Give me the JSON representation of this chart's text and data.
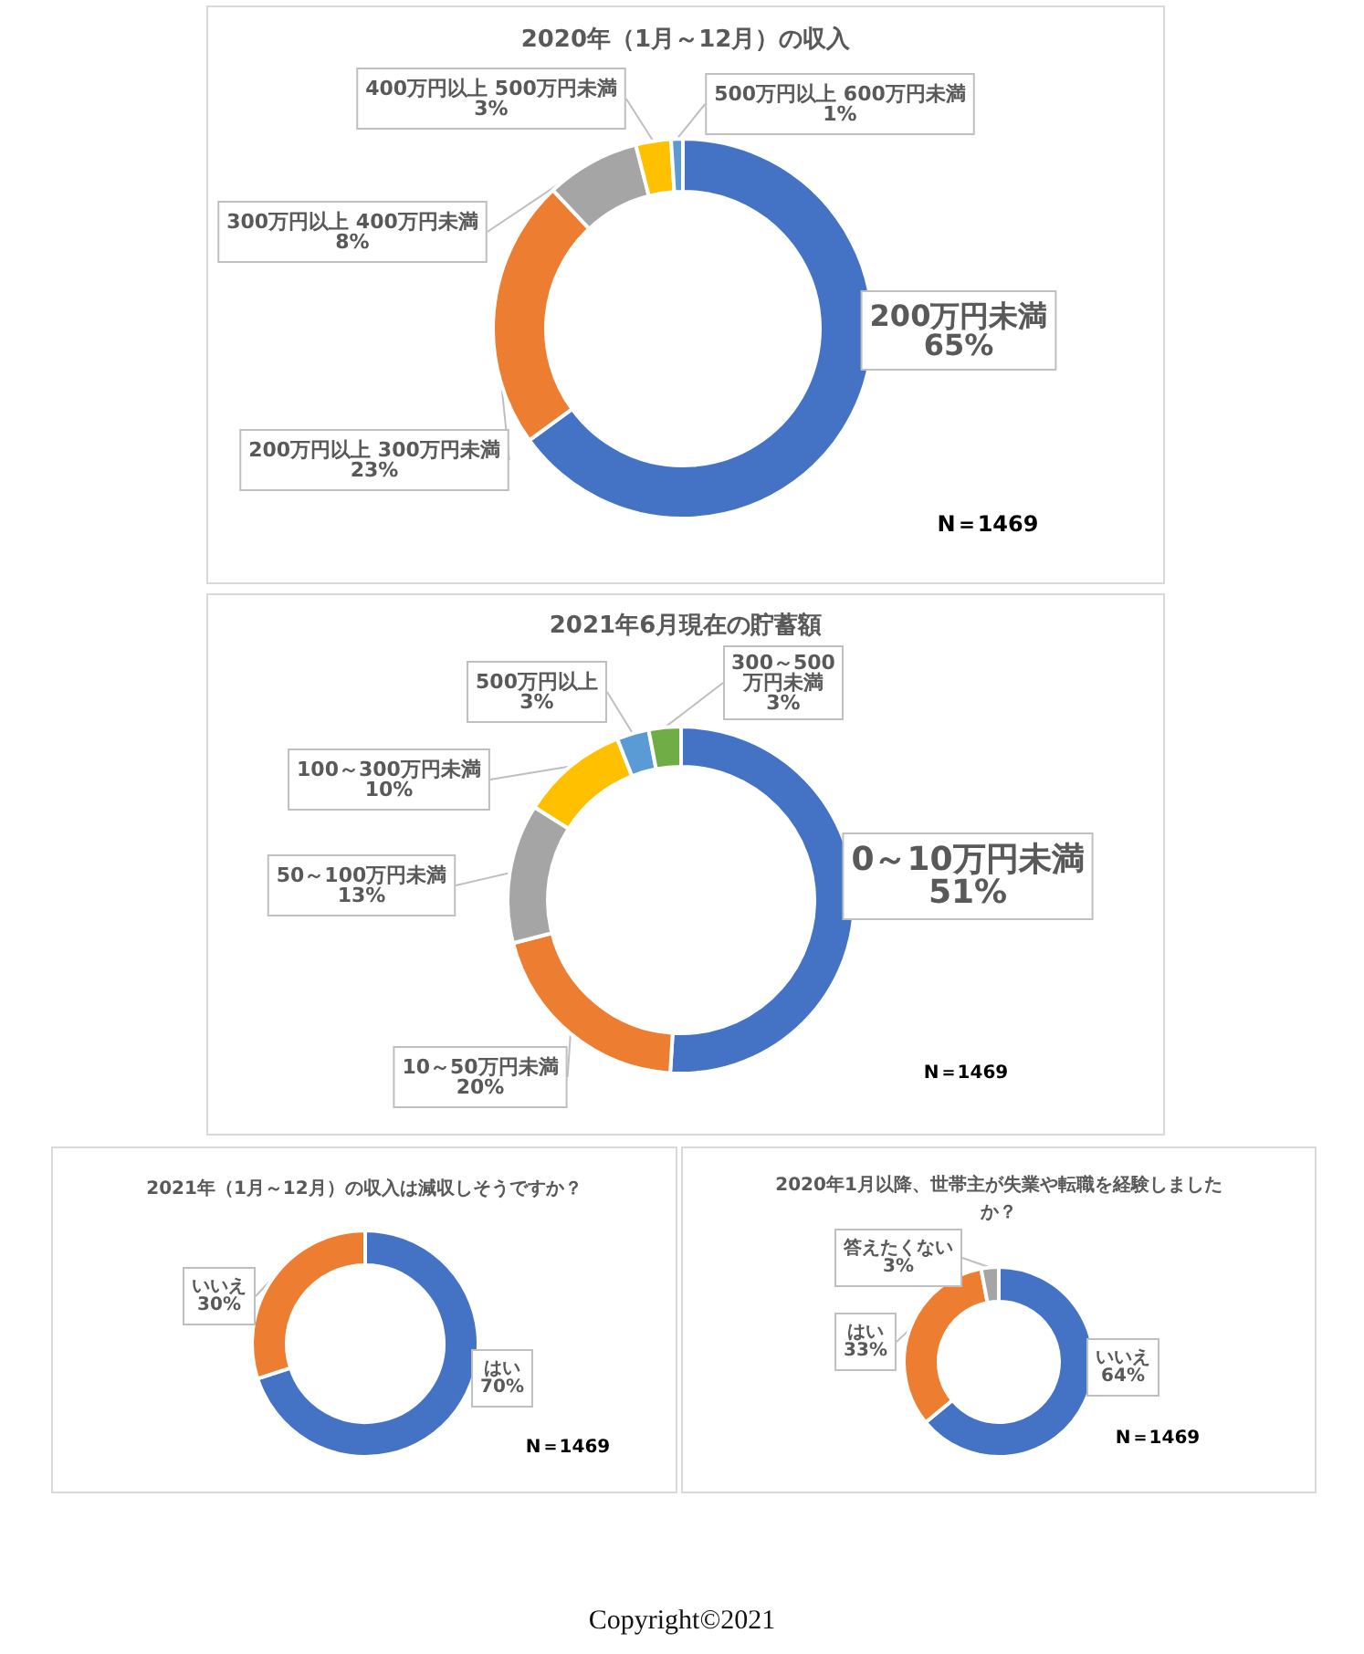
{
  "chart_data": [
    {
      "type": "donut",
      "title": "2020年（1月～12月）の収入",
      "categories": [
        "200万円未満",
        "200万円以上 300万円未満",
        "300万円以上 400万円未満",
        "400万円以上 500万円未満",
        "500万円以上 600万円未満"
      ],
      "values": [
        65,
        23,
        8,
        3,
        1
      ],
      "value_labels": [
        "65%",
        "23%",
        "8%",
        "3%",
        "1%"
      ],
      "colors": [
        "#4472c4",
        "#ed7d31",
        "#a5a5a5",
        "#ffc000",
        "#5b9bd5"
      ],
      "annotations": [
        "N＝1469"
      ]
    },
    {
      "type": "donut",
      "title": "2021年6月現在の貯蓄額",
      "categories": [
        "0～10万円未満",
        "10～50万円未満",
        "50～100万円未満",
        "100～300万円未満",
        "500万円以上",
        "300～500万円未満"
      ],
      "values": [
        51,
        20,
        13,
        10,
        3,
        3
      ],
      "value_labels": [
        "51%",
        "20%",
        "13%",
        "10%",
        "3%",
        "3%"
      ],
      "colors": [
        "#4472c4",
        "#ed7d31",
        "#a5a5a5",
        "#ffc000",
        "#5b9bd5",
        "#70ad47"
      ],
      "annotations": [
        "N＝1469"
      ]
    },
    {
      "type": "donut",
      "title": "2021年（1月～12月）の収入は減収しそうですか？",
      "categories": [
        "はい",
        "いいえ"
      ],
      "values": [
        70,
        30
      ],
      "value_labels": [
        "70%",
        "30%"
      ],
      "colors": [
        "#4472c4",
        "#ed7d31"
      ],
      "annotations": [
        "N＝1469"
      ]
    },
    {
      "type": "donut",
      "title": "2020年1月以降、世帯主が失業や転職を経験しましたか？",
      "categories": [
        "いいえ",
        "はい",
        "答えたくない"
      ],
      "values": [
        64,
        33,
        3
      ],
      "value_labels": [
        "64%",
        "33%",
        "3%"
      ],
      "colors": [
        "#4472c4",
        "#ed7d31",
        "#a5a5a5"
      ],
      "annotations": [
        "N＝1469"
      ]
    },
    {
      "type": "other",
      "annotations": [
        "Copyright©2021"
      ]
    }
  ]
}
